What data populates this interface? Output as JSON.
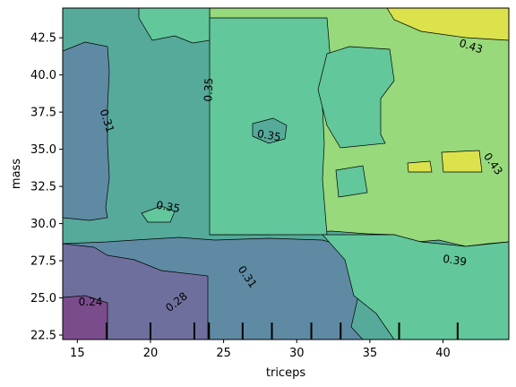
{
  "chart_data": {
    "type": "contour",
    "xlabel": "triceps",
    "ylabel": "mass",
    "xlim": [
      14,
      44.5
    ],
    "ylim": [
      22.2,
      44.5
    ],
    "xticks": [
      15,
      20,
      25,
      30,
      35,
      40
    ],
    "yticks": [
      22.5,
      25.0,
      27.5,
      30.0,
      32.5,
      35.0,
      37.5,
      40.0,
      42.5
    ],
    "xtick_labels": [
      "15",
      "20",
      "25",
      "30",
      "35",
      "40"
    ],
    "ytick_labels": [
      "22.5",
      "25.0",
      "27.5",
      "30.0",
      "32.5",
      "35.0",
      "37.5",
      "40.0",
      "42.5"
    ],
    "levels": [
      0.24,
      0.28,
      0.31,
      0.35,
      0.39,
      0.43
    ],
    "level_colors": [
      "#7b4c8c",
      "#6f6f9e",
      "#5f8aa3",
      "#56aa9a",
      "#62c79a",
      "#97d97b",
      "#dce24c"
    ],
    "contour_labels": [
      {
        "text": "0.24",
        "x": 15.9,
        "y": 24.7,
        "angle": 0
      },
      {
        "text": "0.28",
        "x": 21.8,
        "y": 24.7,
        "angle": -38
      },
      {
        "text": "0.31",
        "x": 17.0,
        "y": 36.9,
        "angle": 72
      },
      {
        "text": "0.31",
        "x": 26.6,
        "y": 26.4,
        "angle": 55
      },
      {
        "text": "0.35",
        "x": 24.0,
        "y": 39.0,
        "angle": -88
      },
      {
        "text": "0.35",
        "x": 28.1,
        "y": 35.9,
        "angle": 10
      },
      {
        "text": "0.35",
        "x": 21.2,
        "y": 31.1,
        "angle": 10
      },
      {
        "text": "0.39",
        "x": 40.8,
        "y": 27.5,
        "angle": 8
      },
      {
        "text": "0.43",
        "x": 41.9,
        "y": 41.9,
        "angle": 18
      },
      {
        "text": "0.43",
        "x": 43.4,
        "y": 34.0,
        "angle": 55
      }
    ],
    "rug_x": [
      17.0,
      20.0,
      23.0,
      24.0,
      26.3,
      28.3,
      31.0,
      33.0,
      37.0,
      41.0
    ]
  }
}
